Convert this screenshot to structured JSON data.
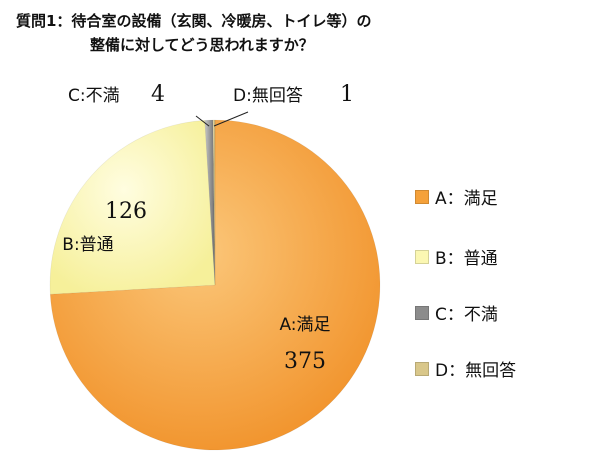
{
  "question": {
    "line1": "質問1：待合室の設備（玄関、冷暖房、トイレ等）の",
    "line2": "整備に対してどう思われますか？"
  },
  "chart_data": {
    "type": "pie",
    "title": "質問1：待合室の設備（玄関、冷暖房、トイレ等）の整備に対してどう思われますか？",
    "slices": [
      {
        "label": "A:満足",
        "legend": "A：満足",
        "value": 375,
        "color": "#f5a13a"
      },
      {
        "label": "B:普通",
        "legend": "B：普通",
        "value": 126,
        "color": "#fbf7b2"
      },
      {
        "label": "C:不満",
        "legend": "C：不満",
        "value": 4,
        "color": "#8c8c8c"
      },
      {
        "label": "D:無回答",
        "legend": "D：無回答",
        "value": 1,
        "color": "#d9c78a"
      }
    ],
    "legend_position": "right"
  }
}
